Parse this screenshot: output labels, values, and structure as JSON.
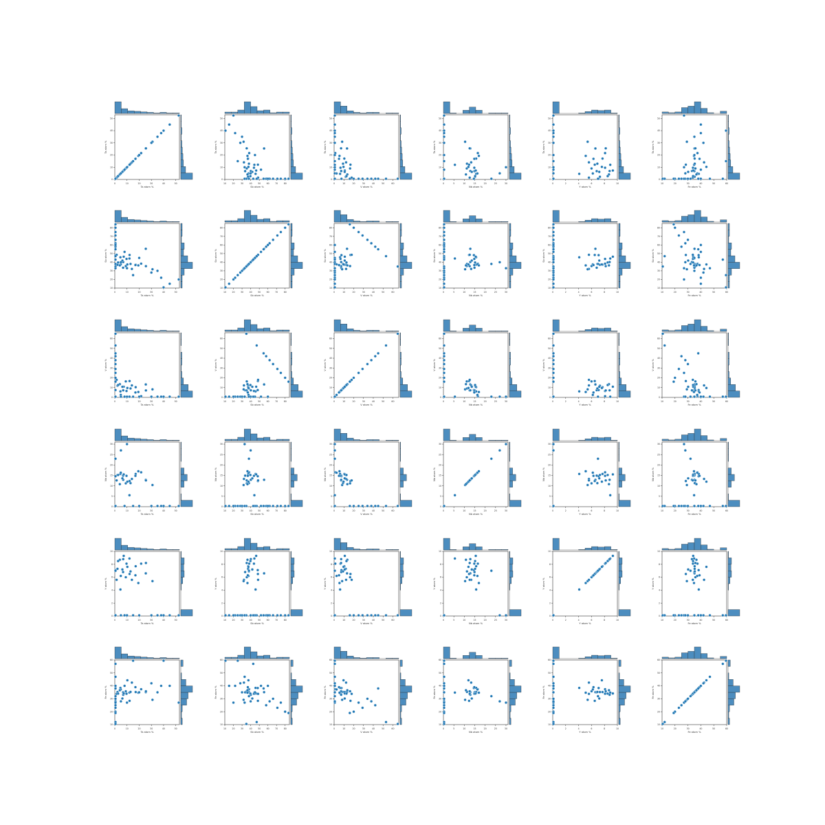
{
  "chart_data": {
    "type": "scatter",
    "layout": "pairwise joint-plot grid 6x6 with marginal histograms",
    "variables": [
      "Ta atom %",
      "Sb atom %",
      "V atom %",
      "Nb atom %",
      "Y atom %",
      "Fe atom %"
    ],
    "ranges": [
      [
        0,
        53
      ],
      [
        10,
        85
      ],
      [
        0,
        66
      ],
      [
        0,
        31
      ],
      [
        0,
        10
      ],
      [
        10,
        60
      ]
    ],
    "ticks": [
      [
        "0",
        "10",
        "20",
        "30",
        "40",
        "50"
      ],
      [
        "10",
        "20",
        "30",
        "40",
        "50",
        "60",
        "70",
        "80"
      ],
      [
        "0",
        "10",
        "20",
        "30",
        "40",
        "50",
        "60"
      ],
      [
        "0",
        "5",
        "10",
        "15",
        "20",
        "25",
        "30"
      ],
      [
        "0",
        "2",
        "4",
        "6",
        "8",
        "10"
      ],
      [
        "10",
        "20",
        "30",
        "40",
        "50",
        "60"
      ]
    ],
    "marker_color": "#1f77b4",
    "hist_fill": "#4c8dbf",
    "samples": [
      {
        "Ta": 9.0,
        "Sb": 35.5,
        "V": 16.3,
        "Nb": 11.2,
        "Y": 6.0,
        "Fe": 35.8
      },
      {
        "Ta": 21.6,
        "Sb": 38.3,
        "V": 1.2,
        "Nb": 16.5,
        "Y": 8.1,
        "Fe": 37.4
      },
      {
        "Ta": 25.4,
        "Sb": 55.6,
        "V": 13.2,
        "Nb": 12.9,
        "Y": 6.6,
        "Fe": 35.1
      },
      {
        "Ta": 14.0,
        "Sb": 32.2,
        "V": 12.2,
        "Nb": 13.3,
        "Y": 5.6,
        "Fe": 42.5
      },
      {
        "Ta": 0.3,
        "Sb": 48.2,
        "V": 7.5,
        "Nb": 14.6,
        "Y": 7.1,
        "Fe": 38.3
      },
      {
        "Ta": 4.6,
        "Sb": 45.7,
        "V": 6.1,
        "Nb": 15.7,
        "Y": 4.1,
        "Fe": 38.4
      },
      {
        "Ta": 6.8,
        "Sb": 33.6,
        "V": 7.3,
        "Nb": 14.9,
        "Y": 6.8,
        "Fe": 35.0
      },
      {
        "Ta": 12.0,
        "Sb": 44.3,
        "V": 0.0,
        "Nb": 5.5,
        "Y": 8.9,
        "Fe": 34.8
      },
      {
        "Ta": 2.2,
        "Sb": 37.0,
        "V": 11.9,
        "Nb": 15.2,
        "Y": 7.3,
        "Fe": 35.2
      },
      {
        "Ta": 30.9,
        "Sb": 31.8,
        "V": 8.2,
        "Nb": 10.4,
        "Y": 5.4,
        "Fe": 29.2
      },
      {
        "Ta": 12.9,
        "Sb": 38.0,
        "V": 9.1,
        "Nb": 11.3,
        "Y": 6.9,
        "Fe": 35.3
      },
      {
        "Ta": 17.1,
        "Sb": 37.1,
        "V": 10.4,
        "Nb": 15.7,
        "Y": 7.7,
        "Fe": 35.2
      },
      {
        "Ta": 9.6,
        "Sb": 43.8,
        "V": 6.5,
        "Nb": 14.8,
        "Y": 8.1,
        "Fe": 33.9
      },
      {
        "Ta": 12.1,
        "Sb": 48.4,
        "V": 16.7,
        "Nb": 12.3,
        "Y": 6.5,
        "Fe": 28.4
      },
      {
        "Ta": 4.9,
        "Sb": 37.5,
        "V": 2.5,
        "Nb": 16.3,
        "Y": 6.2,
        "Fe": 37.2
      },
      {
        "Ta": 25.5,
        "Sb": 35.4,
        "V": 7.1,
        "Nb": 12.6,
        "Y": 8.2,
        "Fe": 35.8
      },
      {
        "Ta": 10.3,
        "Sb": 37.4,
        "V": 9.6,
        "Nb": 12.0,
        "Y": 7.6,
        "Fe": 44.3
      },
      {
        "Ta": 4.1,
        "Sb": 36.3,
        "V": 13.5,
        "Nb": 10.8,
        "Y": 8.7,
        "Fe": 36.6
      },
      {
        "Ta": 6.9,
        "Sb": 40.2,
        "V": 7.2,
        "Nb": 12.9,
        "Y": 8.8,
        "Fe": 33.1
      },
      {
        "Ta": 7.3,
        "Sb": 46.4,
        "V": 10.9,
        "Nb": 15.5,
        "Y": 9.3,
        "Fe": 34.1
      },
      {
        "Ta": 19.3,
        "Sb": 36.3,
        "V": 5.5,
        "Nb": 17.0,
        "Y": 5.1,
        "Fe": 34.7
      },
      {
        "Ta": 1.5,
        "Sb": 48.6,
        "V": 17.9,
        "Nb": 12.6,
        "Y": 5.6,
        "Fe": 33.8
      },
      {
        "Ta": 16.9,
        "Sb": 36.7,
        "V": 5.0,
        "Nb": 14.8,
        "Y": 6.3,
        "Fe": 39.0
      },
      {
        "Ta": 2.7,
        "Sb": 39.7,
        "V": 12.6,
        "Nb": 15.2,
        "Y": 8.5,
        "Fe": 34.0
      },
      {
        "Ta": 6.2,
        "Sb": 41.9,
        "V": 10.8,
        "Nb": 13.6,
        "Y": 7.2,
        "Fe": 30.2
      },
      {
        "Ta": 0.0,
        "Sb": 58.0,
        "V": 42.0,
        "Nb": 0.0,
        "Y": 0.0,
        "Fe": 25.0
      },
      {
        "Ta": 0.0,
        "Sb": 80.0,
        "V": 20.0,
        "Nb": 0.0,
        "Y": 0.0,
        "Fe": 20.0
      },
      {
        "Ta": 0.0,
        "Sb": 71.0,
        "V": 29.0,
        "Nb": 0.0,
        "Y": 0.0,
        "Fe": 23.0
      },
      {
        "Ta": 0.0,
        "Sb": 66.0,
        "V": 34.0,
        "Nb": 0.0,
        "Y": 0.0,
        "Fe": 30.0
      },
      {
        "Ta": 0.0,
        "Sb": 84.0,
        "V": 16.0,
        "Nb": 0.0,
        "Y": 0.0,
        "Fe": 19.0
      },
      {
        "Ta": 0.0,
        "Sb": 47.0,
        "V": 53.0,
        "Nb": 0.0,
        "Y": 0.0,
        "Fe": 12.0
      },
      {
        "Ta": 0.0,
        "Sb": 35.0,
        "V": 65.0,
        "Nb": 0.0,
        "Y": 0.0,
        "Fe": 10.0
      },
      {
        "Ta": 0.0,
        "Sb": 62.0,
        "V": 38.0,
        "Nb": 0.0,
        "Y": 0.0,
        "Fe": 28.0
      },
      {
        "Ta": 0.0,
        "Sb": 75.0,
        "V": 25.0,
        "Nb": 0.0,
        "Y": 0.0,
        "Fe": 27.0
      },
      {
        "Ta": 0.0,
        "Sb": 55.0,
        "V": 45.0,
        "Nb": 0.0,
        "Y": 0.0,
        "Fe": 38.0
      },
      {
        "Ta": 15.0,
        "Sb": 25.0,
        "V": 0.0,
        "Nb": 0.0,
        "Y": 0.0,
        "Fe": 60.0
      },
      {
        "Ta": 40.0,
        "Sb": 0.0,
        "V": 0.0,
        "Nb": 0.0,
        "Y": 0.0,
        "Fe": 60.0
      },
      {
        "Ta": 30.0,
        "Sb": 28.0,
        "V": 0.0,
        "Nb": 0.0,
        "Y": 0.0,
        "Fe": 42.0
      },
      {
        "Ta": 38.0,
        "Sb": 22.0,
        "V": 0.0,
        "Nb": 0.0,
        "Y": 0.0,
        "Fe": 40.0
      },
      {
        "Ta": 53.0,
        "Sb": 20.0,
        "V": 0.0,
        "Nb": 0.0,
        "Y": 0.0,
        "Fe": 27.0
      },
      {
        "Ta": 20.0,
        "Sb": 45.0,
        "V": 0.0,
        "Nb": 0.0,
        "Y": 0.0,
        "Fe": 35.0
      },
      {
        "Ta": 45.0,
        "Sb": 15.0,
        "V": 0.0,
        "Nb": 0.0,
        "Y": 0.0,
        "Fe": 40.0
      },
      {
        "Ta": 35.0,
        "Sb": 30.0,
        "V": 0.0,
        "Nb": 0.0,
        "Y": 0.0,
        "Fe": 35.0
      },
      {
        "Ta": 8.0,
        "Sb": 52.0,
        "V": 0.0,
        "Nb": 0.0,
        "Y": 0.0,
        "Fe": 40.0
      },
      {
        "Ta": 0.0,
        "Sb": 43.0,
        "V": 0.0,
        "Nb": 0.0,
        "Y": 0.0,
        "Fe": 57.0
      },
      {
        "Ta": 0.0,
        "Sb": 60.0,
        "V": 0.0,
        "Nb": 0.0,
        "Y": 0.0,
        "Fe": 40.0
      },
      {
        "Ta": 0.0,
        "Sb": 33.0,
        "V": 0.0,
        "Nb": 0.0,
        "Y": 0.0,
        "Fe": 47.0
      },
      {
        "Ta": 10.0,
        "Sb": 33.0,
        "V": 0.0,
        "Nb": 30.0,
        "Y": 0.0,
        "Fe": 27.0
      },
      {
        "Ta": 5.0,
        "Sb": 40.0,
        "V": 0.0,
        "Nb": 27.0,
        "Y": 0.0,
        "Fe": 28.0
      },
      {
        "Ta": 0.0,
        "Sb": 38.0,
        "V": 0.0,
        "Nb": 23.0,
        "Y": 7.0,
        "Fe": 32.0
      }
    ]
  }
}
